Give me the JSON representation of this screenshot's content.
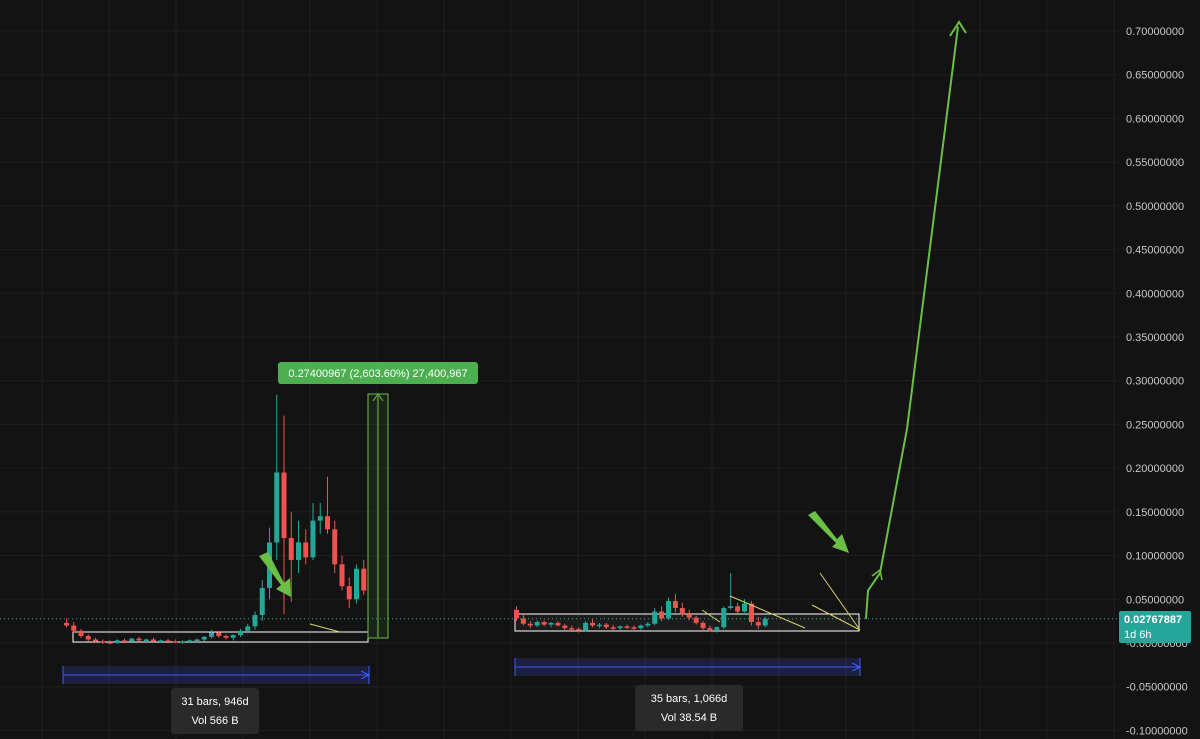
{
  "chart_data": {
    "type": "candlestick",
    "title": "",
    "xlabel": "",
    "ylabel": "",
    "ylim": [
      -0.1,
      0.715
    ],
    "grid": true,
    "y_ticks": [
      {
        "value": 0.7,
        "label": "0.70000000"
      },
      {
        "value": 0.65,
        "label": "0.65000000"
      },
      {
        "value": 0.6,
        "label": "0.60000000"
      },
      {
        "value": 0.55,
        "label": "0.55000000"
      },
      {
        "value": 0.5,
        "label": "0.50000000"
      },
      {
        "value": 0.45,
        "label": "0.45000000"
      },
      {
        "value": 0.4,
        "label": "0.40000000"
      },
      {
        "value": 0.35,
        "label": "0.35000000"
      },
      {
        "value": 0.3,
        "label": "0.30000000"
      },
      {
        "value": 0.25,
        "label": "0.25000000"
      },
      {
        "value": 0.2,
        "label": "0.20000000"
      },
      {
        "value": 0.15,
        "label": "0.15000000"
      },
      {
        "value": 0.1,
        "label": "0.10000000"
      },
      {
        "value": 0.05,
        "label": "0.05000000"
      },
      {
        "value": 0.0,
        "label": "-0.00000000"
      },
      {
        "value": -0.05,
        "label": "-0.05000000"
      },
      {
        "value": -0.1,
        "label": "-0.10000000"
      }
    ],
    "colors": {
      "up": "#26a69a",
      "down": "#ef5350",
      "projection": "#6abf45",
      "range": "#3b5cff",
      "grid": "#1f1f1f",
      "background": "#131313"
    },
    "candles": [
      [
        0.023,
        0.028,
        0.018,
        0.02
      ],
      [
        0.02,
        0.024,
        0.012,
        0.014
      ],
      [
        0.014,
        0.016,
        0.006,
        0.008
      ],
      [
        0.008,
        0.01,
        0.002,
        0.004
      ],
      [
        0.004,
        0.006,
        0.0,
        0.002
      ],
      [
        0.002,
        0.004,
        -0.001,
        0.001
      ],
      [
        0.001,
        0.003,
        -0.001,
        0.0
      ],
      [
        0.0,
        0.004,
        -0.001,
        0.003
      ],
      [
        0.003,
        0.005,
        0.0,
        0.002
      ],
      [
        0.002,
        0.006,
        0.001,
        0.005
      ],
      [
        0.005,
        0.007,
        0.002,
        0.003
      ],
      [
        0.003,
        0.005,
        0.001,
        0.004
      ],
      [
        0.004,
        0.006,
        0.001,
        0.002
      ],
      [
        0.002,
        0.004,
        0.0,
        0.003
      ],
      [
        0.003,
        0.005,
        0.001,
        0.002
      ],
      [
        0.002,
        0.004,
        0.0,
        0.001
      ],
      [
        0.001,
        0.003,
        -0.001,
        0.002
      ],
      [
        0.002,
        0.004,
        0.0,
        0.003
      ],
      [
        0.003,
        0.005,
        0.001,
        0.004
      ],
      [
        0.004,
        0.008,
        0.002,
        0.007
      ],
      [
        0.007,
        0.015,
        0.005,
        0.012
      ],
      [
        0.012,
        0.014,
        0.006,
        0.008
      ],
      [
        0.008,
        0.01,
        0.004,
        0.006
      ],
      [
        0.006,
        0.01,
        0.003,
        0.009
      ],
      [
        0.009,
        0.016,
        0.007,
        0.014
      ],
      [
        0.014,
        0.022,
        0.011,
        0.019
      ],
      [
        0.019,
        0.036,
        0.015,
        0.032
      ],
      [
        0.032,
        0.072,
        0.025,
        0.063
      ],
      [
        0.063,
        0.132,
        0.05,
        0.115
      ],
      [
        0.115,
        0.284,
        0.095,
        0.195
      ],
      [
        0.195,
        0.26,
        0.033,
        0.12
      ],
      [
        0.12,
        0.15,
        0.047,
        0.095
      ],
      [
        0.095,
        0.14,
        0.08,
        0.115
      ],
      [
        0.115,
        0.13,
        0.09,
        0.098
      ],
      [
        0.098,
        0.16,
        0.095,
        0.14
      ],
      [
        0.14,
        0.16,
        0.125,
        0.145
      ],
      [
        0.145,
        0.19,
        0.125,
        0.13
      ],
      [
        0.13,
        0.14,
        0.08,
        0.09
      ],
      [
        0.09,
        0.1,
        0.06,
        0.065
      ],
      [
        0.065,
        0.075,
        0.04,
        0.05
      ],
      [
        0.05,
        0.09,
        0.045,
        0.085
      ],
      [
        0.085,
        0.095,
        0.055,
        0.06
      ],
      [
        0.038,
        0.042,
        0.025,
        0.028
      ],
      [
        0.028,
        0.032,
        0.02,
        0.022
      ],
      [
        0.022,
        0.025,
        0.017,
        0.02
      ],
      [
        0.02,
        0.026,
        0.018,
        0.024
      ],
      [
        0.024,
        0.026,
        0.019,
        0.021
      ],
      [
        0.021,
        0.024,
        0.018,
        0.023
      ],
      [
        0.023,
        0.025,
        0.019,
        0.02
      ],
      [
        0.02,
        0.022,
        0.015,
        0.017
      ],
      [
        0.017,
        0.02,
        0.014,
        0.016
      ],
      [
        0.016,
        0.018,
        0.012,
        0.014
      ],
      [
        0.014,
        0.025,
        0.013,
        0.023
      ],
      [
        0.023,
        0.027,
        0.018,
        0.02
      ],
      [
        0.02,
        0.023,
        0.017,
        0.021
      ],
      [
        0.021,
        0.023,
        0.016,
        0.018
      ],
      [
        0.018,
        0.021,
        0.015,
        0.017
      ],
      [
        0.017,
        0.02,
        0.015,
        0.019
      ],
      [
        0.019,
        0.021,
        0.016,
        0.018
      ],
      [
        0.018,
        0.02,
        0.015,
        0.017
      ],
      [
        0.017,
        0.021,
        0.015,
        0.02
      ],
      [
        0.02,
        0.024,
        0.018,
        0.022
      ],
      [
        0.022,
        0.04,
        0.02,
        0.036
      ],
      [
        0.036,
        0.042,
        0.025,
        0.028
      ],
      [
        0.028,
        0.052,
        0.026,
        0.048
      ],
      [
        0.048,
        0.056,
        0.035,
        0.04
      ],
      [
        0.04,
        0.046,
        0.03,
        0.033
      ],
      [
        0.033,
        0.038,
        0.026,
        0.029
      ],
      [
        0.029,
        0.031,
        0.021,
        0.023
      ],
      [
        0.023,
        0.025,
        0.015,
        0.017
      ],
      [
        0.017,
        0.02,
        0.013,
        0.015
      ],
      [
        0.015,
        0.019,
        0.012,
        0.018
      ],
      [
        0.018,
        0.042,
        0.016,
        0.04
      ],
      [
        0.04,
        0.08,
        0.038,
        0.042
      ],
      [
        0.042,
        0.046,
        0.034,
        0.036
      ],
      [
        0.036,
        0.05,
        0.035,
        0.045
      ],
      [
        0.045,
        0.048,
        0.02,
        0.024
      ],
      [
        0.024,
        0.03,
        0.016,
        0.02
      ],
      [
        0.02,
        0.03,
        0.018,
        0.0277
      ]
    ],
    "projection_path": [
      [
        0.03,
        0.0277
      ],
      [
        0.03,
        0.06
      ],
      [
        0.03,
        0.08
      ],
      [
        0.365,
        0.245
      ],
      [
        0.705,
        0.705
      ]
    ]
  },
  "measurement": {
    "label": "0.27400967 (2,603.60%) 27,400,967"
  },
  "range_left": {
    "line1": "31 bars, 946d",
    "line2": "Vol 566 B"
  },
  "range_right": {
    "line1": "35 bars, 1,066d",
    "line2": "Vol 38.54 B"
  },
  "price_tag": {
    "price": "0.02767887",
    "time": "1d 6h"
  }
}
